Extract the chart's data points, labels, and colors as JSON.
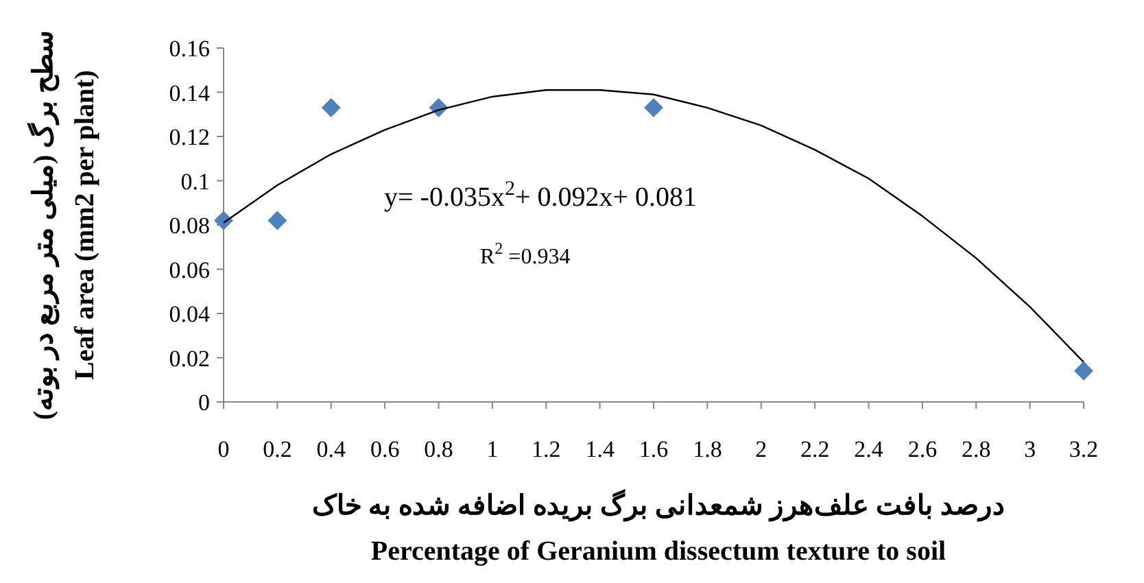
{
  "chart_data": {
    "type": "scatter",
    "xlabel": "درصد بافت علف‌هرز شمعدانی برگ بریده اضافه شده به خاک\nPercentage of Geranium dissectum texture to soil",
    "ylabel": "سطح برگ (میلی متر مربع در بوته)\nLeaf area (mm2 per plant)",
    "marker": "diamond",
    "series": [
      {
        "color": "#4f81bd",
        "x": [
          0,
          0.2,
          0.4,
          0.8,
          1.6,
          3.2
        ],
        "values": [
          0.082,
          0.082,
          0.133,
          0.133,
          0.133,
          0.014
        ]
      },
      {
        "type": "line",
        "color": "#000000",
        "marker": "none",
        "x": [
          0,
          0.2,
          0.4,
          0.6,
          0.8,
          1.0,
          1.2,
          1.4,
          1.6,
          1.8,
          2.0,
          2.2,
          2.4,
          2.6,
          2.8,
          3.0,
          3.2
        ],
        "values": [
          0.081,
          0.098,
          0.112,
          0.123,
          0.132,
          0.138,
          0.141,
          0.141,
          0.139,
          0.133,
          0.125,
          0.114,
          0.101,
          0.084,
          0.065,
          0.043,
          0.018
        ]
      }
    ],
    "annotations": [
      "y= -0.035x$^{2}$+ 0.092x+ 0.081",
      "R$^{2}$ =0.934"
    ],
    "xlim": [
      0,
      3.2
    ],
    "xticks": [
      0,
      0.2,
      0.4,
      0.6,
      0.8,
      1,
      1.2,
      1.4,
      1.6,
      1.8,
      2,
      2.2,
      2.4,
      2.6,
      2.8,
      3,
      3.2
    ],
    "ylim": [
      0,
      0.16
    ],
    "yticks": [
      0,
      0.02,
      0.04,
      0.06,
      0.08,
      0.1,
      0.12,
      0.14,
      0.16
    ]
  }
}
